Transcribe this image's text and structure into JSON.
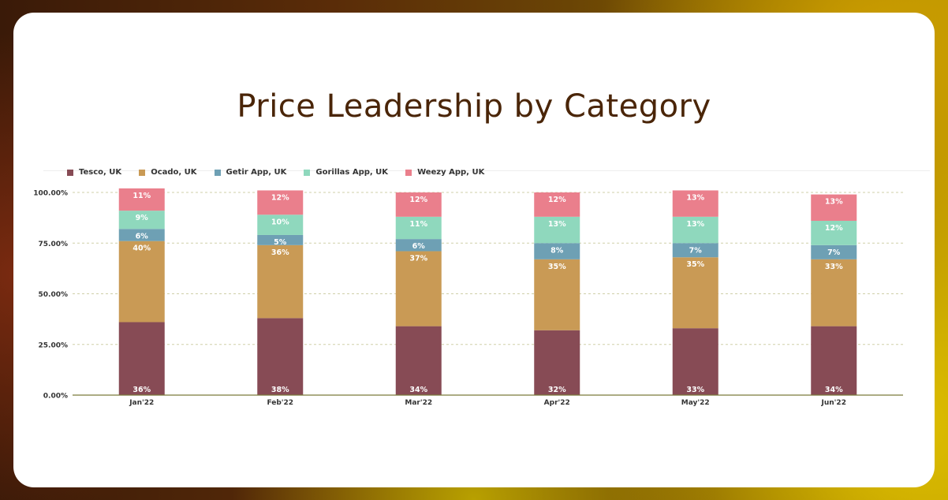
{
  "page": {
    "title": "Price Leadership by Category"
  },
  "chart_data": {
    "type": "bar",
    "stacked": true,
    "title": "Price Leadership by Category",
    "xlabel": "",
    "ylabel": "",
    "ylim": [
      0,
      100
    ],
    "y_ticks": [
      "0.00%",
      "25.00%",
      "50.00%",
      "75.00%",
      "100.00%"
    ],
    "grid": true,
    "legend_position": "top-left",
    "categories": [
      "Jan'22",
      "Feb'22",
      "Mar'22",
      "Apr'22",
      "May'22",
      "Jun'22"
    ],
    "series": [
      {
        "name": "Tesco, UK",
        "color": "#874b55",
        "values": [
          36,
          38,
          34,
          32,
          33,
          34
        ]
      },
      {
        "name": "Ocado, UK",
        "color": "#c99a55",
        "values": [
          40,
          36,
          37,
          35,
          35,
          33
        ]
      },
      {
        "name": "Getir App, UK",
        "color": "#6ea0b4",
        "values": [
          6,
          5,
          6,
          8,
          7,
          7
        ]
      },
      {
        "name": "Gorillas App, UK",
        "color": "#8fd8bd",
        "values": [
          9,
          10,
          11,
          13,
          13,
          12
        ]
      },
      {
        "name": "Weezy App, UK",
        "color": "#ea7f8c",
        "values": [
          11,
          12,
          12,
          12,
          13,
          13
        ]
      }
    ]
  }
}
